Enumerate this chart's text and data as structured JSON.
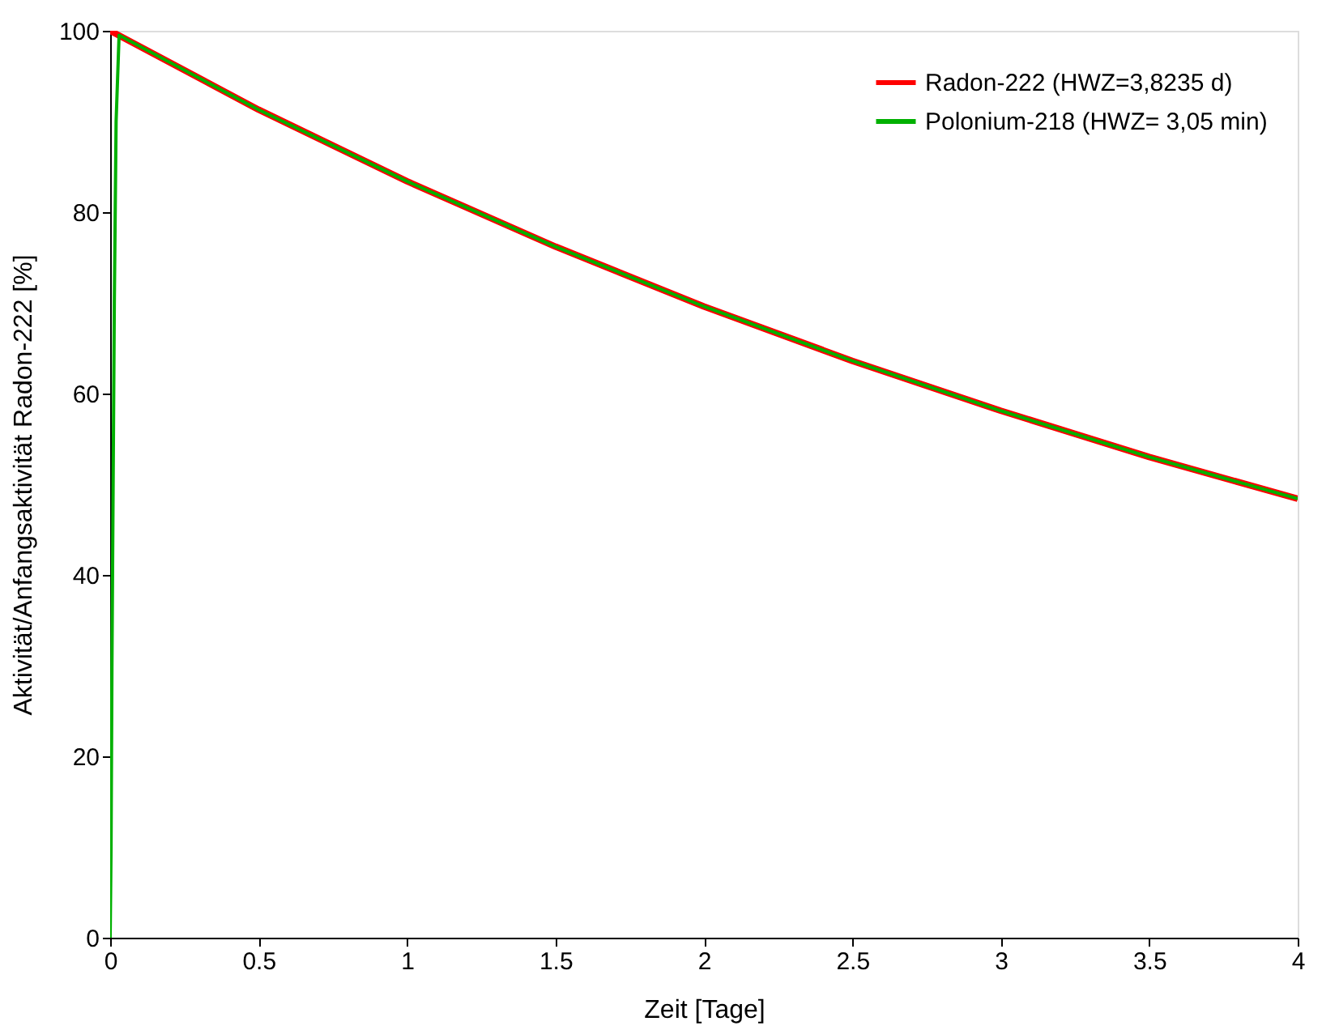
{
  "chart_data": {
    "type": "line",
    "xlabel": "Zeit [Tage]",
    "ylabel": "Aktivität/Anfangsaktivität Radon-222 [%]",
    "xlim": [
      0,
      4
    ],
    "ylim": [
      0,
      100
    ],
    "xticks": [
      0,
      0.5,
      1,
      1.5,
      2,
      2.5,
      3,
      3.5,
      4
    ],
    "yticks": [
      0,
      20,
      40,
      60,
      80,
      100
    ],
    "grid": false,
    "legend": "top right",
    "series": [
      {
        "name": "Radon-222 (HWZ=3,8235 d)",
        "color": "#ff0000",
        "x": [
          0,
          0.5,
          1,
          1.5,
          2,
          2.5,
          3,
          3.5,
          4
        ],
        "values": [
          100,
          91.3,
          83.4,
          76.2,
          69.6,
          63.6,
          58.1,
          53.0,
          48.4
        ]
      },
      {
        "name": "Polonium-218 (HWZ= 3,05 min)",
        "color": "#00b000",
        "x": [
          0,
          0.003,
          0.006,
          0.01,
          0.014,
          0.02,
          0.03,
          0.5,
          1,
          1.5,
          2,
          2.5,
          3,
          3.5,
          4
        ],
        "values": [
          0,
          10,
          30,
          50,
          70,
          90,
          99.5,
          91.3,
          83.4,
          76.2,
          69.6,
          63.6,
          58.1,
          53.0,
          48.4
        ]
      }
    ]
  }
}
